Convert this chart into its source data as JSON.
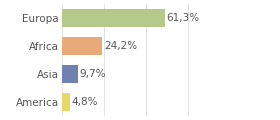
{
  "categories": [
    "Europa",
    "Africa",
    "Asia",
    "America"
  ],
  "values": [
    61.3,
    24.2,
    9.7,
    4.8
  ],
  "labels": [
    "61,3%",
    "24,2%",
    "9,7%",
    "4,8%"
  ],
  "bar_colors": [
    "#b5c98a",
    "#e8aa78",
    "#7080b0",
    "#e8d868"
  ],
  "background_color": "#ffffff",
  "xlim": [
    0,
    100
  ],
  "bar_height": 0.65,
  "label_fontsize": 7.5,
  "tick_fontsize": 7.5,
  "grid_color": "#dddddd",
  "grid_positions": [
    0,
    25,
    50,
    75,
    100
  ],
  "text_color": "#555555"
}
